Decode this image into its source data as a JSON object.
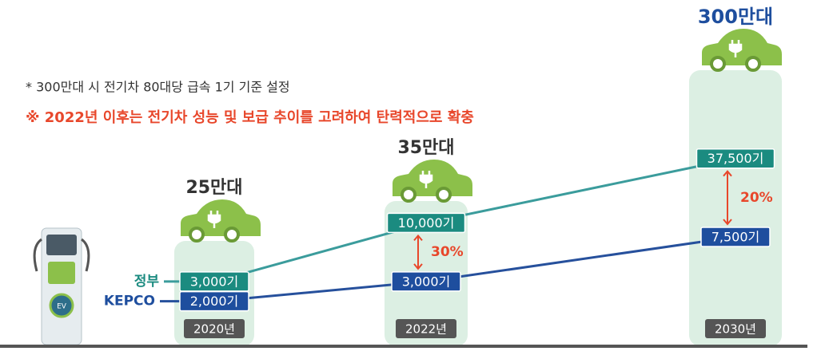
{
  "chart_data": {
    "type": "line",
    "note": "* 300만대 시 전기차 80대당 급속 1기 기준 설정",
    "notice": "※ 2022년 이후는 전기차 성능 및 보급 추이를 고려하여 탄력적으로 확충",
    "categories": [
      "2020년",
      "2022년",
      "2030년"
    ],
    "vehicle_labels": [
      "25만대",
      "35만대",
      "300만대"
    ],
    "series": [
      {
        "name": "정부",
        "color": "#1b8b80",
        "line_color": "#3b9c9c",
        "values": [
          3000,
          10000,
          37500
        ],
        "value_labels": [
          "3,000기",
          "10,000기",
          "37,500기"
        ]
      },
      {
        "name": "KEPCO",
        "color": "#1e4e9e",
        "line_color": "#26509c",
        "values": [
          2000,
          3000,
          7500
        ],
        "value_labels": [
          "2,000기",
          "3,000기",
          "7,500기"
        ]
      }
    ],
    "gap_labels": [
      null,
      "30%",
      "20%"
    ],
    "log_scale": true,
    "ylim": [
      1000,
      60000
    ]
  }
}
